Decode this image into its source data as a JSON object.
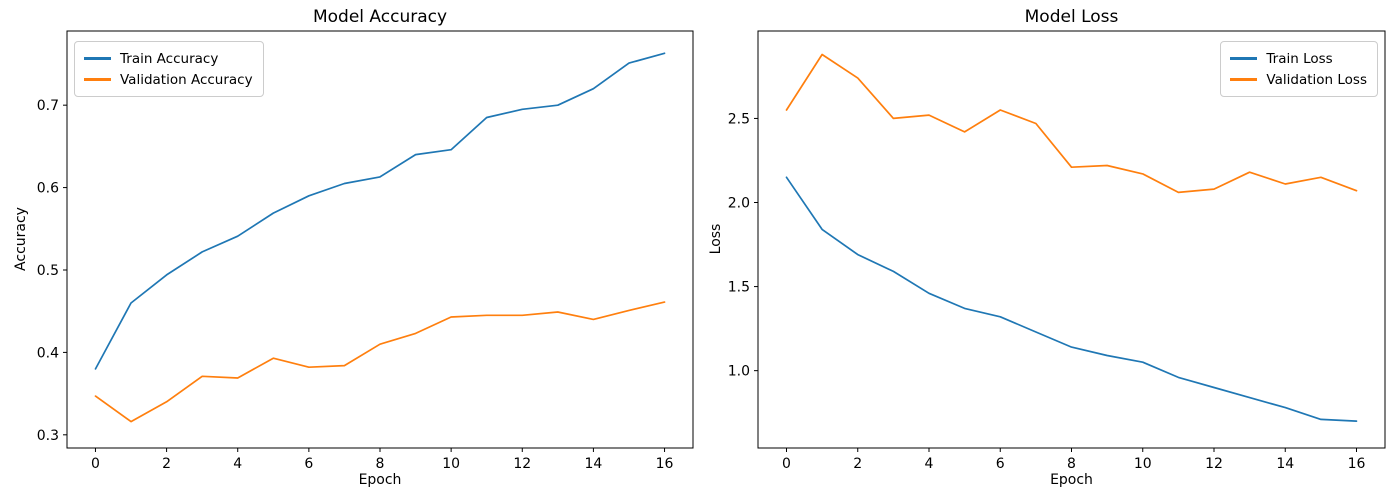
{
  "chart_data": [
    {
      "type": "line",
      "title": "Model Accuracy",
      "xlabel": "Epoch",
      "ylabel": "Accuracy",
      "x": [
        0,
        1,
        2,
        3,
        4,
        5,
        6,
        7,
        8,
        9,
        10,
        11,
        12,
        13,
        14,
        15,
        16
      ],
      "series": [
        {
          "name": "Train Accuracy",
          "color": "#1f77b4",
          "values": [
            0.38,
            0.46,
            0.494,
            0.522,
            0.541,
            0.569,
            0.59,
            0.605,
            0.613,
            0.64,
            0.646,
            0.685,
            0.695,
            0.7,
            0.72,
            0.751,
            0.763
          ]
        },
        {
          "name": "Validation Accuracy",
          "color": "#ff7f0e",
          "values": [
            0.347,
            0.316,
            0.34,
            0.371,
            0.369,
            0.393,
            0.382,
            0.384,
            0.41,
            0.423,
            0.443,
            0.445,
            0.445,
            0.449,
            0.44,
            0.451,
            0.461
          ]
        }
      ],
      "xticks": [
        0,
        2,
        4,
        6,
        8,
        10,
        12,
        14,
        16
      ],
      "xtick_labels": [
        "0",
        "2",
        "4",
        "6",
        "8",
        "10",
        "12",
        "14",
        "16"
      ],
      "yticks": [
        0.3,
        0.4,
        0.5,
        0.6,
        0.7
      ],
      "ytick_labels": [
        "0.3",
        "0.4",
        "0.5",
        "0.6",
        "0.7"
      ],
      "xlim": [
        -0.8,
        16.8
      ],
      "ylim": [
        0.284,
        0.79
      ],
      "grid": false,
      "legend_position": "upper-left"
    },
    {
      "type": "line",
      "title": "Model Loss",
      "xlabel": "Epoch",
      "ylabel": "Loss",
      "x": [
        0,
        1,
        2,
        3,
        4,
        5,
        6,
        7,
        8,
        9,
        10,
        11,
        12,
        13,
        14,
        15,
        16
      ],
      "series": [
        {
          "name": "Train Loss",
          "color": "#1f77b4",
          "values": [
            2.15,
            1.84,
            1.69,
            1.59,
            1.46,
            1.37,
            1.32,
            1.23,
            1.14,
            1.09,
            1.05,
            0.96,
            0.9,
            0.84,
            0.78,
            0.71,
            0.7
          ]
        },
        {
          "name": "Validation Loss",
          "color": "#ff7f0e",
          "values": [
            2.55,
            2.88,
            2.74,
            2.5,
            2.52,
            2.42,
            2.55,
            2.47,
            2.21,
            2.22,
            2.17,
            2.06,
            2.08,
            2.18,
            2.11,
            2.15,
            2.07
          ]
        }
      ],
      "xticks": [
        0,
        2,
        4,
        6,
        8,
        10,
        12,
        14,
        16
      ],
      "xtick_labels": [
        "0",
        "2",
        "4",
        "6",
        "8",
        "10",
        "12",
        "14",
        "16"
      ],
      "yticks": [
        1.0,
        1.5,
        2.0,
        2.5
      ],
      "ytick_labels": [
        "1.0",
        "1.5",
        "2.0",
        "2.5"
      ],
      "xlim": [
        -0.8,
        16.8
      ],
      "ylim": [
        0.54,
        3.02
      ],
      "grid": false,
      "legend_position": "upper-right"
    }
  ],
  "colors": {
    "train_series": "#1f77b4",
    "validation_series": "#ff7f0e",
    "axis": "#000000",
    "background": "#ffffff",
    "legend_border": "#cccccc"
  }
}
